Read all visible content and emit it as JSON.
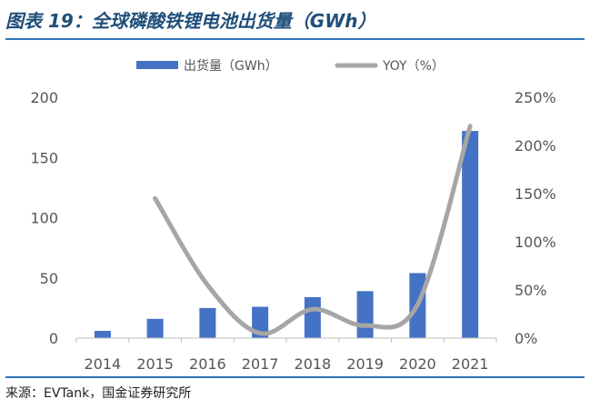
{
  "title": "图表 19：全球磷酸铁锂电池出货量（GWh）",
  "source": "来源：EVTank，国金证券研究所",
  "colors": {
    "bar": "#4472c4",
    "line": "#a6a6a6",
    "axis": "#bfbfbf",
    "title": "#1f4e79",
    "rule": "#2e75b6"
  },
  "chart_data": {
    "type": "bar",
    "categories": [
      "2014",
      "2015",
      "2016",
      "2017",
      "2018",
      "2019",
      "2020",
      "2021"
    ],
    "series": [
      {
        "name": "出货量（GWh）",
        "type": "bar",
        "axis": "left",
        "values": [
          6,
          16,
          25,
          26,
          34,
          39,
          54,
          172
        ]
      },
      {
        "name": "YOY（%）",
        "type": "line",
        "axis": "right",
        "values": [
          null,
          145,
          55,
          5,
          30,
          13,
          35,
          220
        ]
      }
    ],
    "y_left": {
      "min": 0,
      "max": 200,
      "ticks": [
        "0",
        "50",
        "100",
        "150",
        "200"
      ]
    },
    "y_right": {
      "min": 0,
      "max": 250,
      "ticks": [
        "0%",
        "50%",
        "100%",
        "150%",
        "200%",
        "250%"
      ]
    },
    "legend_position": "top",
    "grid": false
  }
}
